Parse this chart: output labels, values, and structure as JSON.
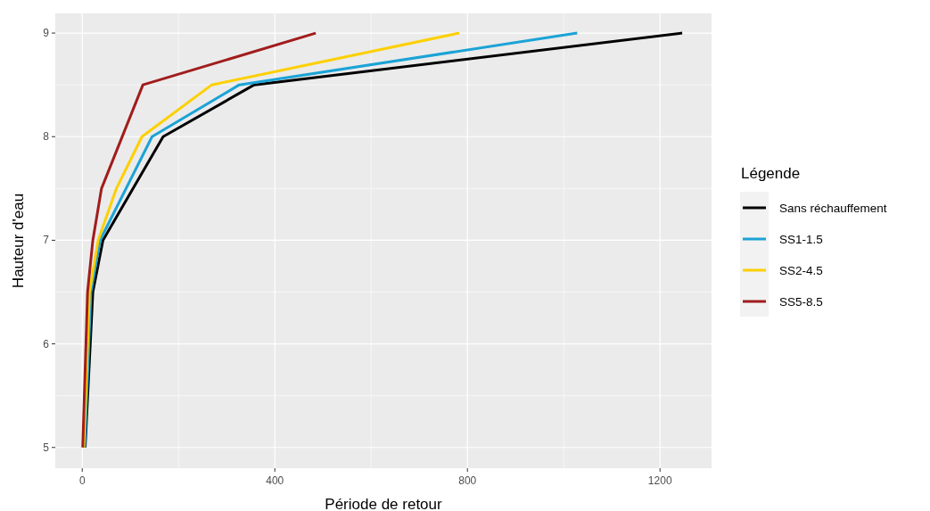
{
  "chart_data": {
    "type": "line",
    "xlabel": "Période de retour",
    "ylabel": "Hauteur d'eau",
    "legend_title": "Légende",
    "legend": "right",
    "grid": true,
    "xlim": [
      -56,
      1307
    ],
    "ylim": [
      4.8,
      9.19
    ],
    "xticks": [
      0,
      400,
      800,
      1200
    ],
    "yticks": [
      5,
      6,
      7,
      8,
      9
    ],
    "series": [
      {
        "name": "Sans réchauffement",
        "color": "#000000",
        "x": [
          6,
          22,
          43,
          168,
          357,
          1246
        ],
        "values": [
          5,
          6.5,
          7,
          8,
          8.5,
          9
        ]
      },
      {
        "name": "SS1-1.5",
        "color": "#1ba3d6",
        "x": [
          5,
          18,
          37,
          145,
          326,
          1028
        ],
        "values": [
          5,
          6.5,
          7,
          8,
          8.5,
          9
        ]
      },
      {
        "name": "SS2-4.5",
        "color": "#fdd000",
        "x": [
          3,
          15,
          33,
          71,
          124,
          269,
          783
        ],
        "values": [
          5,
          6.5,
          7,
          7.5,
          8,
          8.5,
          9
        ]
      },
      {
        "name": "SS5-8.5",
        "color": "#a11c1c",
        "x": [
          1,
          11,
          22,
          40,
          126,
          485
        ],
        "values": [
          5,
          6.5,
          7,
          7.5,
          8.5,
          9
        ]
      }
    ]
  }
}
